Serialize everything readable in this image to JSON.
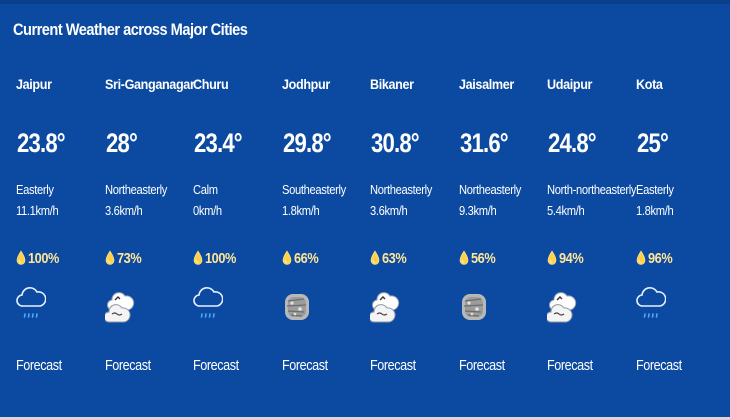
{
  "widget": {
    "title": "Current Weather across Major Cities"
  },
  "cities": [
    {
      "name": "Jaipur",
      "temp": "23.8°",
      "wind_dir": "Easterly",
      "wind_speed": "11.1km/h",
      "humidity": "100%",
      "icon": "rain-cloud-icon",
      "forecast": "Forecast"
    },
    {
      "name": "Sri-Ganganagar",
      "temp": "28°",
      "wind_dir": "Northeasterly",
      "wind_speed": "3.6km/h",
      "humidity": "73%",
      "icon": "cloudy-icon",
      "forecast": "Forecast"
    },
    {
      "name": "Churu",
      "temp": "23.4°",
      "wind_dir": "Calm",
      "wind_speed": "0km/h",
      "humidity": "100%",
      "icon": "rain-cloud-icon",
      "forecast": "Forecast"
    },
    {
      "name": "Jodhpur",
      "temp": "29.8°",
      "wind_dir": "Southeasterly",
      "wind_speed": "1.8km/h",
      "humidity": "66%",
      "icon": "haze-icon",
      "forecast": "Forecast"
    },
    {
      "name": "Bikaner",
      "temp": "30.8°",
      "wind_dir": "Northeasterly",
      "wind_speed": "3.6km/h",
      "humidity": "63%",
      "icon": "cloudy-icon",
      "forecast": "Forecast"
    },
    {
      "name": "Jaisalmer",
      "temp": "31.6°",
      "wind_dir": "Northeasterly",
      "wind_speed": "9.3km/h",
      "humidity": "56%",
      "icon": "haze-icon",
      "forecast": "Forecast"
    },
    {
      "name": "Udaipur",
      "temp": "24.8°",
      "wind_dir": "North-northeasterly",
      "wind_speed": "5.4km/h",
      "humidity": "94%",
      "icon": "cloudy-icon",
      "forecast": "Forecast"
    },
    {
      "name": "Kota",
      "temp": "25°",
      "wind_dir": "Easterly",
      "wind_speed": "1.8km/h",
      "humidity": "96%",
      "icon": "rain-cloud-icon",
      "forecast": "Forecast"
    }
  ],
  "colors": {
    "background": "#0b4aa0",
    "humidity_text": "#ffe59a",
    "drop_fill": "#ffd24a",
    "rain_drops": "#4aa8ff"
  }
}
